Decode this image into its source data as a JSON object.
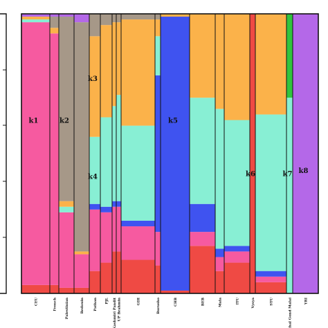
{
  "chart_data": {
    "type": "bar",
    "stacked": true,
    "normalized": true,
    "title": "",
    "xlabel": "",
    "ylabel": "",
    "ylim": [
      0,
      1
    ],
    "cluster_colors": {
      "k1": "#f65aa0",
      "k2": "#a69888",
      "k3": "#fbb24a",
      "k4": "#88efd4",
      "k5": "#3f53f0",
      "k6": "#ef4a44",
      "k7": "#31c43e",
      "k8": "#b468e8"
    },
    "stack_order": [
      "k6",
      "k1",
      "k5",
      "k4",
      "k3",
      "k2",
      "k7",
      "k8"
    ],
    "cluster_labels": [
      {
        "name": "k1",
        "population": "CEU",
        "value": 0.62
      },
      {
        "name": "k2",
        "population": "Palestinian",
        "value": 0.62
      },
      {
        "name": "k3",
        "population": "Pathan",
        "value": 0.77
      },
      {
        "name": "k4",
        "population": "Pathan",
        "value": 0.42
      },
      {
        "name": "k5",
        "population": "CHB",
        "value": 0.62
      },
      {
        "name": "k6",
        "population": "Vysya",
        "value": 0.43
      },
      {
        "name": "k7",
        "population": "Santhal Gond Malai",
        "value": 0.43
      },
      {
        "name": "k8",
        "population": "YRI",
        "value": 0.44
      }
    ],
    "populations": [
      {
        "name": "CEU",
        "width": 41,
        "k1": 0.94,
        "k2": 0.0,
        "k3": 0.01,
        "k4": 0.01,
        "k5": 0.0,
        "k6": 0.03,
        "k7": 0.0,
        "k8": 0.01
      },
      {
        "name": "French",
        "width": 13,
        "k1": 0.9,
        "k2": 0.04,
        "k3": 0.02,
        "k4": 0.0,
        "k5": 0.0,
        "k6": 0.03,
        "k7": 0.0,
        "k8": 0.01
      },
      {
        "name": "Palestinian",
        "width": 22,
        "k1": 0.27,
        "k2": 0.66,
        "k3": 0.02,
        "k4": 0.02,
        "k5": 0.0,
        "k6": 0.02,
        "k7": 0.0,
        "k8": 0.01
      },
      {
        "name": "Bedouin",
        "width": 22,
        "k1": 0.12,
        "k2": 0.82,
        "k3": 0.01,
        "k4": 0.0,
        "k5": 0.0,
        "k6": 0.02,
        "k7": 0.0,
        "k8": 0.03
      },
      {
        "name": "Pathan",
        "width": 16,
        "k1": 0.22,
        "k2": 0.08,
        "k3": 0.36,
        "k4": 0.24,
        "k5": 0.02,
        "k6": 0.08,
        "k7": 0.0,
        "k8": 0.0
      },
      {
        "name": "PJL",
        "width": 17,
        "k1": 0.18,
        "k2": 0.04,
        "k3": 0.33,
        "k4": 0.32,
        "k5": 0.02,
        "k6": 0.11,
        "k7": 0.0,
        "k8": 0.0
      },
      {
        "name": "Kashmiri Pandit",
        "width": 6,
        "k1": 0.16,
        "k2": 0.03,
        "k3": 0.3,
        "k4": 0.34,
        "k5": 0.02,
        "k6": 0.15,
        "k7": 0.0,
        "k8": 0.0
      },
      {
        "name": "UP Brahmin",
        "width": 7,
        "k1": 0.16,
        "k2": 0.03,
        "k3": 0.26,
        "k4": 0.38,
        "k5": 0.02,
        "k6": 0.15,
        "k7": 0.0,
        "k8": 0.0
      },
      {
        "name": "GIH",
        "width": 49,
        "k1": 0.12,
        "k2": 0.02,
        "k3": 0.38,
        "k4": 0.34,
        "k5": 0.02,
        "k6": 0.12,
        "k7": 0.0,
        "k8": 0.0
      },
      {
        "name": "Burusho",
        "width": 8,
        "k1": 0.12,
        "k2": 0.02,
        "k3": 0.06,
        "k4": 0.14,
        "k5": 0.56,
        "k6": 0.1,
        "k7": 0.0,
        "k8": 0.0
      },
      {
        "name": "CHB",
        "width": 42,
        "k1": 0.0,
        "k2": 0.0,
        "k3": 0.01,
        "k4": 0.0,
        "k5": 0.98,
        "k6": 0.01,
        "k7": 0.0,
        "k8": 0.0
      },
      {
        "name": "BEB",
        "width": 37,
        "k1": 0.05,
        "k2": 0.0,
        "k3": 0.3,
        "k4": 0.38,
        "k5": 0.1,
        "k6": 0.17,
        "k7": 0.0,
        "k8": 0.0
      },
      {
        "name": "Mala",
        "width": 13,
        "k1": 0.05,
        "k2": 0.0,
        "k3": 0.34,
        "k4": 0.5,
        "k5": 0.03,
        "k6": 0.08,
        "k7": 0.0,
        "k8": 0.0
      },
      {
        "name": "ITU",
        "width": 37,
        "k1": 0.04,
        "k2": 0.0,
        "k3": 0.38,
        "k4": 0.45,
        "k5": 0.02,
        "k6": 0.11,
        "k7": 0.0,
        "k8": 0.0
      },
      {
        "name": "Vysya",
        "width": 8,
        "k1": 0.0,
        "k2": 0.0,
        "k3": 0.0,
        "k4": 0.0,
        "k5": 0.0,
        "k6": 1.0,
        "k7": 0.0,
        "k8": 0.0
      },
      {
        "name": "STU",
        "width": 45,
        "k1": 0.02,
        "k2": 0.0,
        "k3": 0.36,
        "k4": 0.56,
        "k5": 0.02,
        "k6": 0.04,
        "k7": 0.0,
        "k8": 0.0
      },
      {
        "name": "Santhal Gond Malai",
        "width": 9,
        "k1": 0.0,
        "k2": 0.0,
        "k3": 0.0,
        "k4": 0.7,
        "k5": 0.0,
        "k6": 0.0,
        "k7": 0.3,
        "k8": 0.0
      },
      {
        "name": "YRI",
        "width": 37,
        "k1": 0.0,
        "k2": 0.0,
        "k3": 0.0,
        "k4": 0.0,
        "k5": 0.0,
        "k6": 0.0,
        "k7": 0.0,
        "k8": 1.0
      }
    ],
    "grid": false,
    "legend": "none"
  }
}
